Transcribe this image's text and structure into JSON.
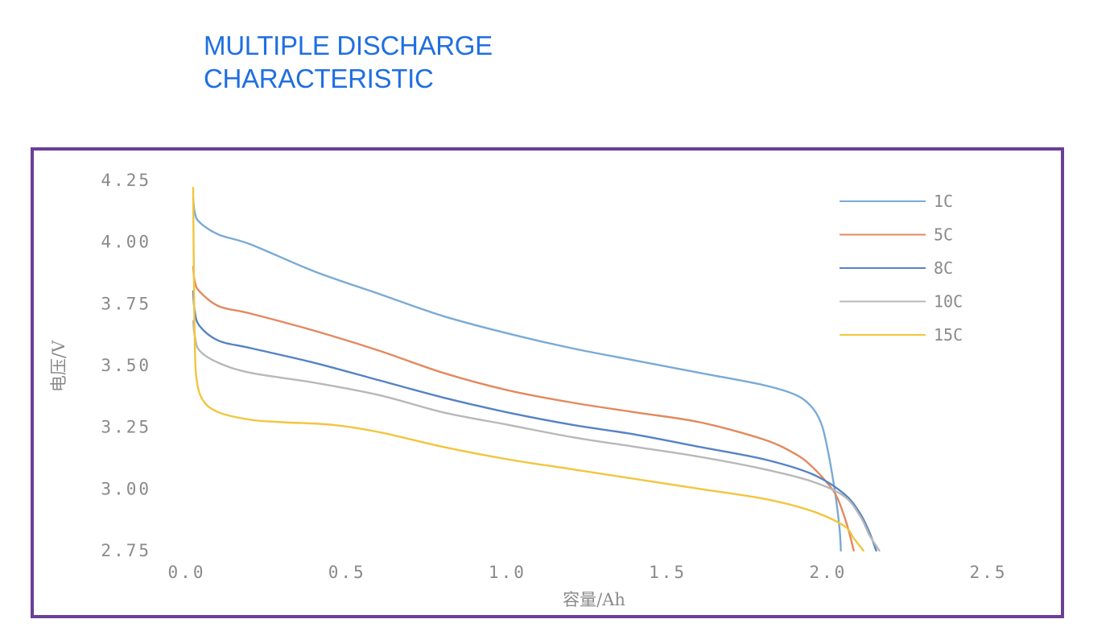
{
  "heading": {
    "line1": "MULTIPLE DISCHARGE",
    "line2": "CHARACTERISTIC"
  },
  "chart_data": {
    "type": "line",
    "title": "",
    "xlabel": "容量/Ah",
    "ylabel": "电压/V",
    "xlim": [
      0.0,
      2.5
    ],
    "ylim": [
      2.75,
      4.25
    ],
    "xticks": [
      "0.0",
      "0.5",
      "1.0",
      "1.5",
      "2.0",
      "2.5"
    ],
    "yticks": [
      "4.25",
      "4.00",
      "3.75",
      "3.50",
      "3.25",
      "3.00",
      "2.75"
    ],
    "grid": false,
    "legend_position": "top-right",
    "series": [
      {
        "name": "1C",
        "color": "#7aaad6",
        "x": [
          0.02,
          0.025,
          0.04,
          0.1,
          0.2,
          0.4,
          0.6,
          0.8,
          1.0,
          1.2,
          1.4,
          1.6,
          1.8,
          1.9,
          1.95,
          1.98,
          2.0,
          2.02,
          2.035,
          2.04
        ],
        "y": [
          4.18,
          4.12,
          4.08,
          4.03,
          3.99,
          3.88,
          3.79,
          3.7,
          3.63,
          3.57,
          3.52,
          3.47,
          3.42,
          3.38,
          3.33,
          3.26,
          3.15,
          3.0,
          2.85,
          2.75
        ]
      },
      {
        "name": "5C",
        "color": "#e28a5e",
        "x": [
          0.02,
          0.025,
          0.04,
          0.1,
          0.2,
          0.4,
          0.6,
          0.8,
          1.0,
          1.2,
          1.4,
          1.6,
          1.8,
          1.9,
          1.95,
          2.0,
          2.03,
          2.06,
          2.08
        ],
        "y": [
          3.9,
          3.84,
          3.8,
          3.74,
          3.71,
          3.64,
          3.56,
          3.47,
          3.4,
          3.35,
          3.31,
          3.27,
          3.2,
          3.14,
          3.09,
          3.02,
          2.96,
          2.85,
          2.75
        ]
      },
      {
        "name": "8C",
        "color": "#5582c6",
        "x": [
          0.02,
          0.025,
          0.04,
          0.1,
          0.2,
          0.4,
          0.6,
          0.8,
          1.0,
          1.2,
          1.4,
          1.6,
          1.8,
          1.95,
          2.05,
          2.1,
          2.13,
          2.15
        ],
        "y": [
          3.8,
          3.72,
          3.66,
          3.6,
          3.57,
          3.51,
          3.44,
          3.37,
          3.31,
          3.26,
          3.22,
          3.17,
          3.12,
          3.06,
          2.98,
          2.9,
          2.82,
          2.75
        ]
      },
      {
        "name": "10C",
        "color": "#b8b8b8",
        "x": [
          0.02,
          0.025,
          0.04,
          0.1,
          0.2,
          0.4,
          0.6,
          0.8,
          1.0,
          1.2,
          1.4,
          1.6,
          1.8,
          1.95,
          2.05,
          2.1,
          2.13,
          2.16
        ],
        "y": [
          3.68,
          3.62,
          3.56,
          3.51,
          3.47,
          3.43,
          3.38,
          3.31,
          3.26,
          3.21,
          3.17,
          3.13,
          3.08,
          3.03,
          2.97,
          2.89,
          2.81,
          2.75
        ]
      },
      {
        "name": "15C",
        "color": "#f2c53d",
        "x": [
          0.02,
          0.022,
          0.025,
          0.03,
          0.05,
          0.1,
          0.2,
          0.3,
          0.45,
          0.6,
          0.8,
          1.0,
          1.2,
          1.4,
          1.6,
          1.8,
          1.95,
          2.05,
          2.08,
          2.11
        ],
        "y": [
          4.22,
          3.9,
          3.6,
          3.45,
          3.36,
          3.31,
          3.28,
          3.27,
          3.26,
          3.23,
          3.17,
          3.12,
          3.08,
          3.04,
          3.0,
          2.96,
          2.91,
          2.85,
          2.8,
          2.75
        ]
      }
    ]
  }
}
